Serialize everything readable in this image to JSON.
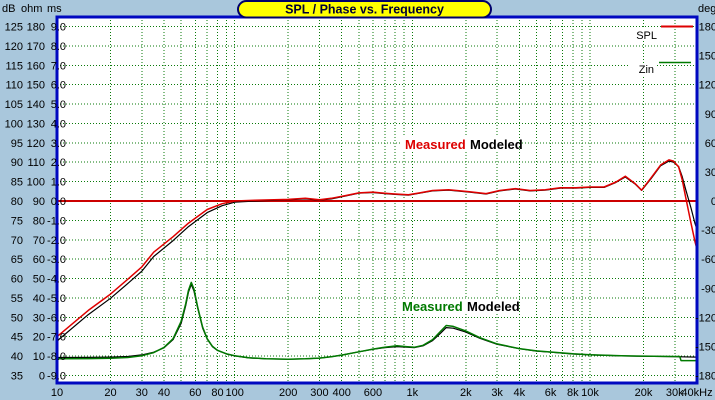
{
  "window": {
    "title": "SPL / Phase vs. Frequency",
    "background_color": "#a9c7dc",
    "plot_background": "#ffffff",
    "plot_border_color": "#0008c0",
    "grid_color": "#0a7a0a",
    "title_pill_fill": "#ffff00",
    "title_pill_border": "#00006b"
  },
  "legend": {
    "items": [
      {
        "label": "SPL",
        "color": "#dd0000"
      },
      {
        "label": "Zin",
        "color": "#007a00"
      }
    ]
  },
  "fit_labels": {
    "spl": {
      "measured": "Measured",
      "modeled": "Modeled",
      "measured_color": "#dd0000",
      "modeled_color": "#000000"
    },
    "zin": {
      "measured": "Measured",
      "modeled": "Modeled",
      "measured_color": "#007a00",
      "modeled_color": "#000000"
    }
  },
  "chart_data": {
    "type": "line",
    "title": "SPL / Phase vs. Frequency",
    "grid": true,
    "x_axis": {
      "scale": "log",
      "range": [
        10,
        40000
      ],
      "unit": "Hz",
      "gridlines": [
        10,
        20,
        30,
        40,
        50,
        60,
        70,
        80,
        90,
        100,
        200,
        300,
        400,
        500,
        600,
        700,
        800,
        900,
        1000,
        2000,
        3000,
        4000,
        5000,
        6000,
        7000,
        8000,
        9000,
        10000,
        20000,
        30000,
        40000
      ],
      "tick_labels": [
        {
          "text": "10",
          "f": 10
        },
        {
          "text": "20",
          "f": 20
        },
        {
          "text": "30",
          "f": 30
        },
        {
          "text": "40",
          "f": 40
        },
        {
          "text": "60",
          "f": 60
        },
        {
          "text": "80",
          "f": 80
        },
        {
          "text": "100",
          "f": 100
        },
        {
          "text": "200",
          "f": 200
        },
        {
          "text": "300",
          "f": 300
        },
        {
          "text": "400",
          "f": 400
        },
        {
          "text": "600",
          "f": 600
        },
        {
          "text": "1k",
          "f": 1000
        },
        {
          "text": "2k",
          "f": 2000
        },
        {
          "text": "3k",
          "f": 3000
        },
        {
          "text": "4k",
          "f": 4000
        },
        {
          "text": "6k",
          "f": 6000
        },
        {
          "text": "8k",
          "f": 8000
        },
        {
          "text": "10k",
          "f": 10000
        },
        {
          "text": "20k",
          "f": 20000
        },
        {
          "text": "30k",
          "f": 30000
        },
        {
          "text": "40kHz",
          "f": 40000
        }
      ]
    },
    "left_axis_columns": {
      "headers": [
        "dB",
        "ohm",
        "ms"
      ],
      "dB": [
        125,
        120,
        115,
        110,
        105,
        100,
        95,
        90,
        85,
        80,
        75,
        70,
        65,
        60,
        55,
        50,
        45,
        40,
        35
      ],
      "ohm": [
        180,
        170,
        160,
        150,
        140,
        130,
        120,
        110,
        100,
        90,
        80,
        70,
        60,
        50,
        40,
        30,
        20,
        10,
        0
      ],
      "ms": [
        "9.0",
        "8.0",
        "7.0",
        "6.0",
        "5.0",
        "4.0",
        "3.0",
        "2.0",
        "1.0",
        "0.0",
        "-1.0",
        "-2.0",
        "-3.0",
        "-4.0",
        "-5.0",
        "-6.0",
        "-7.0",
        "-8.0",
        "-9.0"
      ]
    },
    "right_axis": {
      "header": "deg",
      "values": [
        180,
        150,
        120,
        90,
        60,
        30,
        0,
        -30,
        -60,
        -90,
        -120,
        -150,
        -180
      ],
      "clipped": true
    },
    "series": [
      {
        "name": "Phase",
        "color": "#cc0000",
        "axis": "ms",
        "width": 2,
        "points": [
          [
            10,
            0
          ],
          [
            40000,
            0
          ]
        ]
      },
      {
        "name": "Zin modeled",
        "color": "#000000",
        "axis": "ohm",
        "width": 1.2,
        "points": [
          [
            10,
            9.3
          ],
          [
            15,
            9.35
          ],
          [
            20,
            9.5
          ],
          [
            25,
            9.8
          ],
          [
            30,
            10.6
          ],
          [
            35,
            12
          ],
          [
            40,
            14.3
          ],
          [
            45,
            18.5
          ],
          [
            50,
            27
          ],
          [
            53,
            36
          ],
          [
            55,
            43
          ],
          [
            57,
            47
          ],
          [
            59,
            43.5
          ],
          [
            62,
            34.5
          ],
          [
            66,
            24.5
          ],
          [
            70,
            18.7
          ],
          [
            75,
            14.8
          ],
          [
            80,
            12.9
          ],
          [
            90,
            11.1
          ],
          [
            100,
            10.1
          ],
          [
            120,
            9.1
          ],
          [
            150,
            8.6
          ],
          [
            200,
            8.4
          ],
          [
            250,
            8.6
          ],
          [
            300,
            9
          ],
          [
            350,
            9.7
          ],
          [
            400,
            10.5
          ],
          [
            500,
            12.2
          ],
          [
            600,
            13.5
          ],
          [
            700,
            14.4
          ],
          [
            820,
            14.9
          ],
          [
            920,
            14.6
          ],
          [
            1030,
            14.4
          ],
          [
            1150,
            15.3
          ],
          [
            1300,
            18
          ],
          [
            1450,
            22
          ],
          [
            1550,
            24.7
          ],
          [
            1700,
            24.4
          ],
          [
            2000,
            22.4
          ],
          [
            2400,
            19.2
          ],
          [
            3000,
            16.1
          ],
          [
            4000,
            13.8
          ],
          [
            5000,
            12.6
          ],
          [
            6000,
            12
          ],
          [
            8000,
            11.1
          ],
          [
            10000,
            10.6
          ],
          [
            15000,
            10.1
          ],
          [
            20000,
            9.9
          ],
          [
            30000,
            9.7
          ],
          [
            40000,
            9.5
          ]
        ]
      },
      {
        "name": "Zin measured",
        "color": "#007a00",
        "axis": "ohm",
        "width": 1.5,
        "points": [
          [
            10,
            8.6
          ],
          [
            15,
            8.7
          ],
          [
            20,
            8.9
          ],
          [
            25,
            9.3
          ],
          [
            30,
            10.2
          ],
          [
            35,
            11.8
          ],
          [
            40,
            14.5
          ],
          [
            45,
            19
          ],
          [
            50,
            28
          ],
          [
            53,
            37
          ],
          [
            55,
            44
          ],
          [
            57,
            48
          ],
          [
            59,
            44.5
          ],
          [
            62,
            35
          ],
          [
            66,
            25
          ],
          [
            70,
            19
          ],
          [
            75,
            15
          ],
          [
            80,
            13
          ],
          [
            90,
            11.2
          ],
          [
            100,
            10.2
          ],
          [
            120,
            9.2
          ],
          [
            150,
            8.6
          ],
          [
            200,
            8.4
          ],
          [
            250,
            8.6
          ],
          [
            300,
            9
          ],
          [
            350,
            9.7
          ],
          [
            400,
            10.5
          ],
          [
            500,
            12.2
          ],
          [
            600,
            13.6
          ],
          [
            700,
            14.6
          ],
          [
            820,
            15.3
          ],
          [
            920,
            14.9
          ],
          [
            1030,
            14.6
          ],
          [
            1150,
            15.6
          ],
          [
            1300,
            18.5
          ],
          [
            1450,
            23
          ],
          [
            1550,
            25.8
          ],
          [
            1700,
            25.3
          ],
          [
            2000,
            23
          ],
          [
            2400,
            19.5
          ],
          [
            3000,
            16.3
          ],
          [
            4000,
            13.9
          ],
          [
            5000,
            12.7
          ],
          [
            6000,
            12.1
          ],
          [
            8000,
            11.2
          ],
          [
            10000,
            10.7
          ],
          [
            15000,
            10.2
          ],
          [
            20000,
            10
          ],
          [
            30000,
            9.8
          ],
          [
            32000,
            9.8
          ],
          [
            32500,
            7.7
          ],
          [
            40000,
            7.7
          ]
        ]
      },
      {
        "name": "SPL modeled",
        "color": "#000000",
        "axis": "dB",
        "width": 1.2,
        "points": [
          [
            10,
            43.9
          ],
          [
            15,
            50.7
          ],
          [
            20,
            54.9
          ],
          [
            25,
            58.7
          ],
          [
            30,
            61.9
          ],
          [
            35,
            65.7
          ],
          [
            45,
            69.8
          ],
          [
            55,
            73.4
          ],
          [
            70,
            77
          ],
          [
            85,
            78.8
          ],
          [
            100,
            79.7
          ],
          [
            130,
            80
          ],
          [
            200,
            80.3
          ],
          [
            250,
            80.55
          ],
          [
            300,
            80.2
          ],
          [
            350,
            80.55
          ],
          [
            420,
            81.3
          ],
          [
            500,
            82
          ],
          [
            600,
            82.2
          ],
          [
            700,
            81.9
          ],
          [
            800,
            81.7
          ],
          [
            950,
            81.5
          ],
          [
            1100,
            82
          ],
          [
            1300,
            82.6
          ],
          [
            1600,
            82.8
          ],
          [
            2100,
            82.3
          ],
          [
            2600,
            81.8
          ],
          [
            3100,
            82.6
          ],
          [
            3800,
            83.1
          ],
          [
            4600,
            82.6
          ],
          [
            5600,
            82.8
          ],
          [
            6800,
            83.3
          ],
          [
            8300,
            83.3
          ],
          [
            10000,
            83.5
          ],
          [
            12000,
            83.5
          ],
          [
            14000,
            84.8
          ],
          [
            15800,
            86.2
          ],
          [
            18000,
            84.3
          ],
          [
            19500,
            82.7
          ],
          [
            22000,
            85.7
          ],
          [
            25000,
            89.1
          ],
          [
            27800,
            90.3
          ],
          [
            29500,
            90
          ],
          [
            31500,
            88.9
          ],
          [
            33000,
            86.3
          ],
          [
            34600,
            82.9
          ],
          [
            37000,
            78.2
          ],
          [
            39000,
            74.2
          ],
          [
            40000,
            72.6
          ]
        ]
      },
      {
        "name": "SPL measured",
        "color": "#e00000",
        "axis": "dB",
        "width": 1.5,
        "points": [
          [
            10,
            45
          ],
          [
            15,
            51.8
          ],
          [
            20,
            56
          ],
          [
            25,
            59.8
          ],
          [
            30,
            63
          ],
          [
            35,
            66.8
          ],
          [
            45,
            70.8
          ],
          [
            55,
            74.3
          ],
          [
            70,
            77.8
          ],
          [
            85,
            79.3
          ],
          [
            100,
            80
          ],
          [
            130,
            80.2
          ],
          [
            200,
            80.4
          ],
          [
            250,
            80.7
          ],
          [
            300,
            80.3
          ],
          [
            350,
            80.7
          ],
          [
            420,
            81.4
          ],
          [
            500,
            82.1
          ],
          [
            600,
            82.3
          ],
          [
            700,
            82
          ],
          [
            800,
            81.8
          ],
          [
            950,
            81.6
          ],
          [
            1100,
            82.1
          ],
          [
            1300,
            82.7
          ],
          [
            1600,
            82.9
          ],
          [
            2100,
            82.4
          ],
          [
            2600,
            81.9
          ],
          [
            3100,
            82.7
          ],
          [
            3800,
            83.2
          ],
          [
            4600,
            82.7
          ],
          [
            5600,
            82.9
          ],
          [
            6800,
            83.4
          ],
          [
            8300,
            83.4
          ],
          [
            10000,
            83.6
          ],
          [
            12000,
            83.6
          ],
          [
            14000,
            84.9
          ],
          [
            15800,
            86.4
          ],
          [
            18000,
            84.4
          ],
          [
            19500,
            82.8
          ],
          [
            22000,
            85.9
          ],
          [
            25000,
            89.3
          ],
          [
            27800,
            90.6
          ],
          [
            29500,
            90.3
          ],
          [
            31500,
            88.8
          ],
          [
            33000,
            85.5
          ],
          [
            34600,
            80.8
          ],
          [
            37000,
            74.3
          ],
          [
            39000,
            69.5
          ],
          [
            40000,
            67.5
          ]
        ]
      }
    ]
  }
}
